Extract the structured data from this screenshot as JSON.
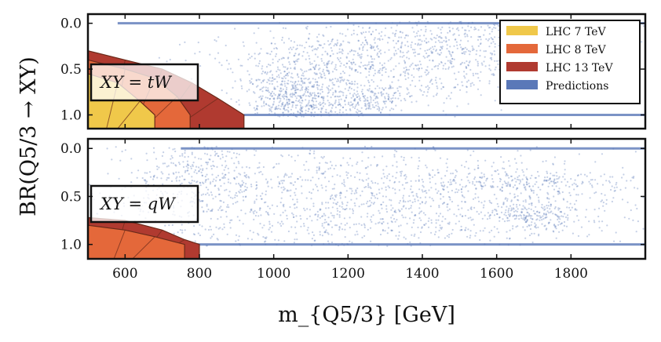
{
  "chart_data": {
    "type": "scatter",
    "xlabel": "m_{Q5/3} [GeV]",
    "ylabel": "BR(Q5/3 → XY)",
    "xlim": [
      500,
      2000
    ],
    "ylim": [
      1.15,
      -0.1
    ],
    "xticks": [
      600,
      800,
      1000,
      1200,
      1400,
      1600,
      1800
    ],
    "xtick_labels": [
      "600",
      "800",
      "1000",
      "1200",
      "1400",
      "1600",
      "1800"
    ],
    "yticks": [
      0.0,
      0.5,
      1.0
    ],
    "ytick_labels": [
      "0.0",
      "0.5",
      "1.0"
    ],
    "legend": {
      "placement": "top-right",
      "entries": [
        {
          "label": "LHC 7 TeV",
          "color": "#f0c84a"
        },
        {
          "label": "LHC 8 TeV",
          "color": "#e4683a"
        },
        {
          "label": "LHC 13 TeV",
          "color": "#b03a30"
        },
        {
          "label": "Predictions",
          "color": "#5a78b8"
        }
      ]
    },
    "panels": [
      {
        "id": "tW",
        "label": "XY = tW",
        "exclusions": [
          {
            "name": "LHC 13 TeV",
            "boundary": [
              [
                500,
                0.3
              ],
              [
                600,
                0.4
              ],
              [
                700,
                0.5
              ],
              [
                780,
                0.65
              ],
              [
                850,
                0.82
              ],
              [
                920,
                1.0
              ]
            ]
          },
          {
            "name": "LHC 8 TeV",
            "boundary": [
              [
                500,
                0.4
              ],
              [
                600,
                0.5
              ],
              [
                680,
                0.6
              ],
              [
                740,
                0.8
              ],
              [
                775,
                1.0
              ]
            ]
          },
          {
            "name": "LHC 7 TeV",
            "boundary": [
              [
                500,
                0.55
              ],
              [
                580,
                0.65
              ],
              [
                640,
                0.85
              ],
              [
                680,
                1.0
              ]
            ]
          }
        ],
        "prediction_clusters": [
          {
            "x": 1100,
            "y": 0.75,
            "sx": 90,
            "sy": 0.3,
            "n": 500
          },
          {
            "x": 1300,
            "y": 0.45,
            "sx": 220,
            "sy": 0.25,
            "n": 700
          },
          {
            "x": 1600,
            "y": 0.2,
            "sx": 250,
            "sy": 0.2,
            "n": 600
          },
          {
            "x": 1050,
            "y": 0.85,
            "sx": 50,
            "sy": 0.15,
            "n": 250
          },
          {
            "x": 1250,
            "y": 0.85,
            "sx": 60,
            "sy": 0.08,
            "n": 150
          }
        ],
        "prediction_lines": [
          0.0,
          1.0
        ]
      },
      {
        "id": "qW",
        "label": "XY = qW",
        "exclusions": [
          {
            "name": "LHC 13 TeV",
            "boundary": [
              [
                500,
                0.72
              ],
              [
                600,
                0.75
              ],
              [
                700,
                0.85
              ],
              [
                760,
                0.95
              ],
              [
                800,
                1.0
              ]
            ]
          },
          {
            "name": "LHC 8 TeV",
            "boundary": [
              [
                500,
                0.8
              ],
              [
                600,
                0.85
              ],
              [
                680,
                0.92
              ],
              [
                760,
                1.0
              ]
            ]
          }
        ],
        "prediction_clusters": [
          {
            "x": 1250,
            "y": 0.55,
            "sx": 420,
            "sy": 0.35,
            "n": 1800
          },
          {
            "x": 800,
            "y": 0.2,
            "sx": 80,
            "sy": 0.25,
            "n": 300
          },
          {
            "x": 1700,
            "y": 0.7,
            "sx": 60,
            "sy": 0.08,
            "n": 200
          },
          {
            "x": 1650,
            "y": 0.35,
            "sx": 150,
            "sy": 0.06,
            "n": 200
          }
        ],
        "prediction_lines": [
          0.0,
          1.0
        ]
      }
    ]
  }
}
